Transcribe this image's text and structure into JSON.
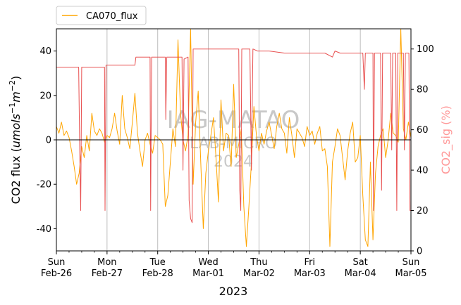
{
  "chart_data": {
    "type": "line",
    "xlabel": "2023",
    "ylabel": "CO2 flux ($umol s^{-1} m^{-2}$)",
    "ylabel_parts": [
      "CO2 flux (",
      "umols",
      "−1",
      "m",
      "−2",
      ")"
    ],
    "y2label": "CO2_sig (%)",
    "ylim": [
      -50,
      50
    ],
    "y2lim": [
      0,
      110
    ],
    "yticks": [
      -40,
      -20,
      0,
      20,
      40
    ],
    "y2ticks": [
      0,
      20,
      40,
      60,
      80,
      100
    ],
    "xlim": [
      "2023-02-26 00:00",
      "2023-03-05 00:00"
    ],
    "xticks": [
      {
        "day": "Sun",
        "date": "Feb-26"
      },
      {
        "day": "Mon",
        "date": "Feb-27"
      },
      {
        "day": "Tue",
        "date": "Feb-28"
      },
      {
        "day": "Wed",
        "date": "Mar-01"
      },
      {
        "day": "Thu",
        "date": "Mar-02"
      },
      {
        "day": "Fri",
        "date": "Mar-03"
      },
      {
        "day": "Sat",
        "date": "Mar-04"
      },
      {
        "day": "Sun",
        "date": "Mar-05"
      }
    ],
    "grid": "vertical-major",
    "zero_line": 0,
    "legend": {
      "position": "above-top-left",
      "entries": [
        "CA070_flux"
      ]
    },
    "watermark": [
      "IAG-MATAO",
      "LAB-MICRO",
      "2024"
    ],
    "series": [
      {
        "name": "CA070_flux",
        "axis": "left",
        "color": "#ffa500",
        "x_unit": "days since 2023-02-26",
        "points": [
          [
            0.0,
            6
          ],
          [
            0.05,
            3
          ],
          [
            0.1,
            8
          ],
          [
            0.15,
            2
          ],
          [
            0.2,
            4
          ],
          [
            0.25,
            1
          ],
          [
            0.3,
            -5
          ],
          [
            0.35,
            -12
          ],
          [
            0.4,
            -20
          ],
          [
            0.45,
            -15
          ],
          [
            0.5,
            -3
          ],
          [
            0.55,
            -8
          ],
          [
            0.6,
            2
          ],
          [
            0.65,
            -5
          ],
          [
            0.7,
            12
          ],
          [
            0.75,
            4
          ],
          [
            0.8,
            2
          ],
          [
            0.85,
            5
          ],
          [
            0.9,
            3
          ],
          [
            0.95,
            -1
          ],
          [
            1.0,
            2
          ],
          [
            1.05,
            1
          ],
          [
            1.1,
            5
          ],
          [
            1.15,
            12
          ],
          [
            1.2,
            4
          ],
          [
            1.25,
            -2
          ],
          [
            1.3,
            20
          ],
          [
            1.35,
            5
          ],
          [
            1.4,
            1
          ],
          [
            1.45,
            -4
          ],
          [
            1.5,
            8
          ],
          [
            1.55,
            21
          ],
          [
            1.6,
            3
          ],
          [
            1.65,
            -5
          ],
          [
            1.7,
            -12
          ],
          [
            1.75,
            0
          ],
          [
            1.8,
            3
          ],
          [
            1.85,
            -2
          ],
          [
            1.9,
            -6
          ],
          [
            1.95,
            2
          ],
          [
            2.0,
            1
          ],
          [
            2.05,
            0
          ],
          [
            2.1,
            -2
          ],
          [
            2.15,
            -30
          ],
          [
            2.2,
            -25
          ],
          [
            2.25,
            -10
          ],
          [
            2.3,
            5
          ],
          [
            2.35,
            -3
          ],
          [
            2.4,
            45
          ],
          [
            2.45,
            12
          ],
          [
            2.5,
            0
          ],
          [
            2.55,
            -5
          ],
          [
            2.6,
            2
          ],
          [
            2.65,
            50
          ],
          [
            2.7,
            -20
          ],
          [
            2.75,
            8
          ],
          [
            2.8,
            22
          ],
          [
            2.85,
            -10
          ],
          [
            2.9,
            -40
          ],
          [
            2.95,
            -15
          ],
          [
            3.0,
            -5
          ],
          [
            3.05,
            2
          ],
          [
            3.1,
            10
          ],
          [
            3.15,
            -8
          ],
          [
            3.2,
            -28
          ],
          [
            3.25,
            18
          ],
          [
            3.3,
            -5
          ],
          [
            3.35,
            3
          ],
          [
            3.4,
            2
          ],
          [
            3.45,
            -12
          ],
          [
            3.5,
            25
          ],
          [
            3.55,
            -8
          ],
          [
            3.6,
            -2
          ],
          [
            3.65,
            5
          ],
          [
            3.7,
            -30
          ],
          [
            3.75,
            -48
          ],
          [
            3.8,
            -30
          ],
          [
            3.85,
            -10
          ],
          [
            3.9,
            15
          ],
          [
            3.95,
            2
          ],
          [
            4.0,
            -5
          ],
          [
            4.05,
            3
          ],
          [
            4.1,
            -2
          ],
          [
            4.15,
            4
          ],
          [
            4.2,
            8
          ],
          [
            4.25,
            2
          ],
          [
            4.3,
            -4
          ],
          [
            4.35,
            6
          ],
          [
            4.4,
            12
          ],
          [
            4.45,
            5
          ],
          [
            4.5,
            3
          ],
          [
            4.55,
            -6
          ],
          [
            4.6,
            10
          ],
          [
            4.65,
            2
          ],
          [
            4.7,
            -8
          ],
          [
            4.75,
            5
          ],
          [
            4.8,
            3
          ],
          [
            4.85,
            1
          ],
          [
            4.9,
            -3
          ],
          [
            4.95,
            6
          ],
          [
            5.0,
            2
          ],
          [
            5.05,
            4
          ],
          [
            5.1,
            -2
          ],
          [
            5.15,
            3
          ],
          [
            5.2,
            6
          ],
          [
            5.25,
            -5
          ],
          [
            5.3,
            -4
          ],
          [
            5.35,
            -12
          ],
          [
            5.4,
            -48
          ],
          [
            5.45,
            -10
          ],
          [
            5.5,
            -3
          ],
          [
            5.55,
            5
          ],
          [
            5.6,
            2
          ],
          [
            5.65,
            -8
          ],
          [
            5.7,
            -18
          ],
          [
            5.75,
            -5
          ],
          [
            5.8,
            3
          ],
          [
            5.85,
            8
          ],
          [
            5.9,
            -10
          ],
          [
            5.95,
            -8
          ],
          [
            6.0,
            2
          ],
          [
            6.05,
            -25
          ],
          [
            6.1,
            -45
          ],
          [
            6.15,
            -48
          ],
          [
            6.2,
            -10
          ],
          [
            6.25,
            -45
          ],
          [
            6.3,
            -15
          ],
          [
            6.35,
            -3
          ],
          [
            6.4,
            2
          ],
          [
            6.45,
            5
          ],
          [
            6.5,
            -8
          ],
          [
            6.55,
            0
          ],
          [
            6.6,
            12
          ],
          [
            6.65,
            3
          ],
          [
            6.7,
            2
          ],
          [
            6.75,
            -1
          ],
          [
            6.8,
            50
          ],
          [
            6.85,
            5
          ],
          [
            6.9,
            0
          ],
          [
            6.95,
            8
          ],
          [
            7.0,
            1
          ]
        ]
      },
      {
        "name": "CO2_sig",
        "axis": "right",
        "color": "#e85050",
        "x_unit": "days since 2023-02-26",
        "points": [
          [
            0.0,
            91
          ],
          [
            0.44,
            91
          ],
          [
            0.46,
            50
          ],
          [
            0.48,
            20
          ],
          [
            0.5,
            91
          ],
          [
            0.95,
            91
          ],
          [
            0.96,
            20
          ],
          [
            0.98,
            92
          ],
          [
            1.55,
            92
          ],
          [
            1.57,
            96
          ],
          [
            1.85,
            96
          ],
          [
            1.86,
            20
          ],
          [
            1.88,
            96
          ],
          [
            2.15,
            96
          ],
          [
            2.16,
            65
          ],
          [
            2.18,
            96
          ],
          [
            2.48,
            96
          ],
          [
            2.5,
            40
          ],
          [
            2.52,
            95
          ],
          [
            2.6,
            96
          ],
          [
            2.62,
            25
          ],
          [
            2.65,
            16
          ],
          [
            2.68,
            14
          ],
          [
            2.7,
            100
          ],
          [
            3.6,
            100
          ],
          [
            3.62,
            30
          ],
          [
            3.64,
            20
          ],
          [
            3.66,
            100
          ],
          [
            3.82,
            100
          ],
          [
            3.85,
            40
          ],
          [
            3.88,
            100
          ],
          [
            3.97,
            99
          ],
          [
            4.2,
            99
          ],
          [
            4.5,
            98
          ],
          [
            5.1,
            98
          ],
          [
            5.3,
            98
          ],
          [
            5.45,
            96
          ],
          [
            5.5,
            99
          ],
          [
            5.6,
            98
          ],
          [
            5.8,
            98
          ],
          [
            6.05,
            98
          ],
          [
            6.08,
            80
          ],
          [
            6.1,
            98
          ],
          [
            6.25,
            98
          ],
          [
            6.26,
            20
          ],
          [
            6.28,
            98
          ],
          [
            6.4,
            98
          ],
          [
            6.42,
            30
          ],
          [
            6.44,
            98
          ],
          [
            6.6,
            98
          ],
          [
            6.62,
            50
          ],
          [
            6.64,
            98
          ],
          [
            6.7,
            98
          ],
          [
            6.72,
            20
          ],
          [
            6.74,
            98
          ],
          [
            6.85,
            98
          ],
          [
            6.87,
            50
          ],
          [
            6.89,
            98
          ],
          [
            6.96,
            98
          ],
          [
            6.98,
            20
          ],
          [
            7.0,
            20
          ]
        ]
      }
    ]
  }
}
